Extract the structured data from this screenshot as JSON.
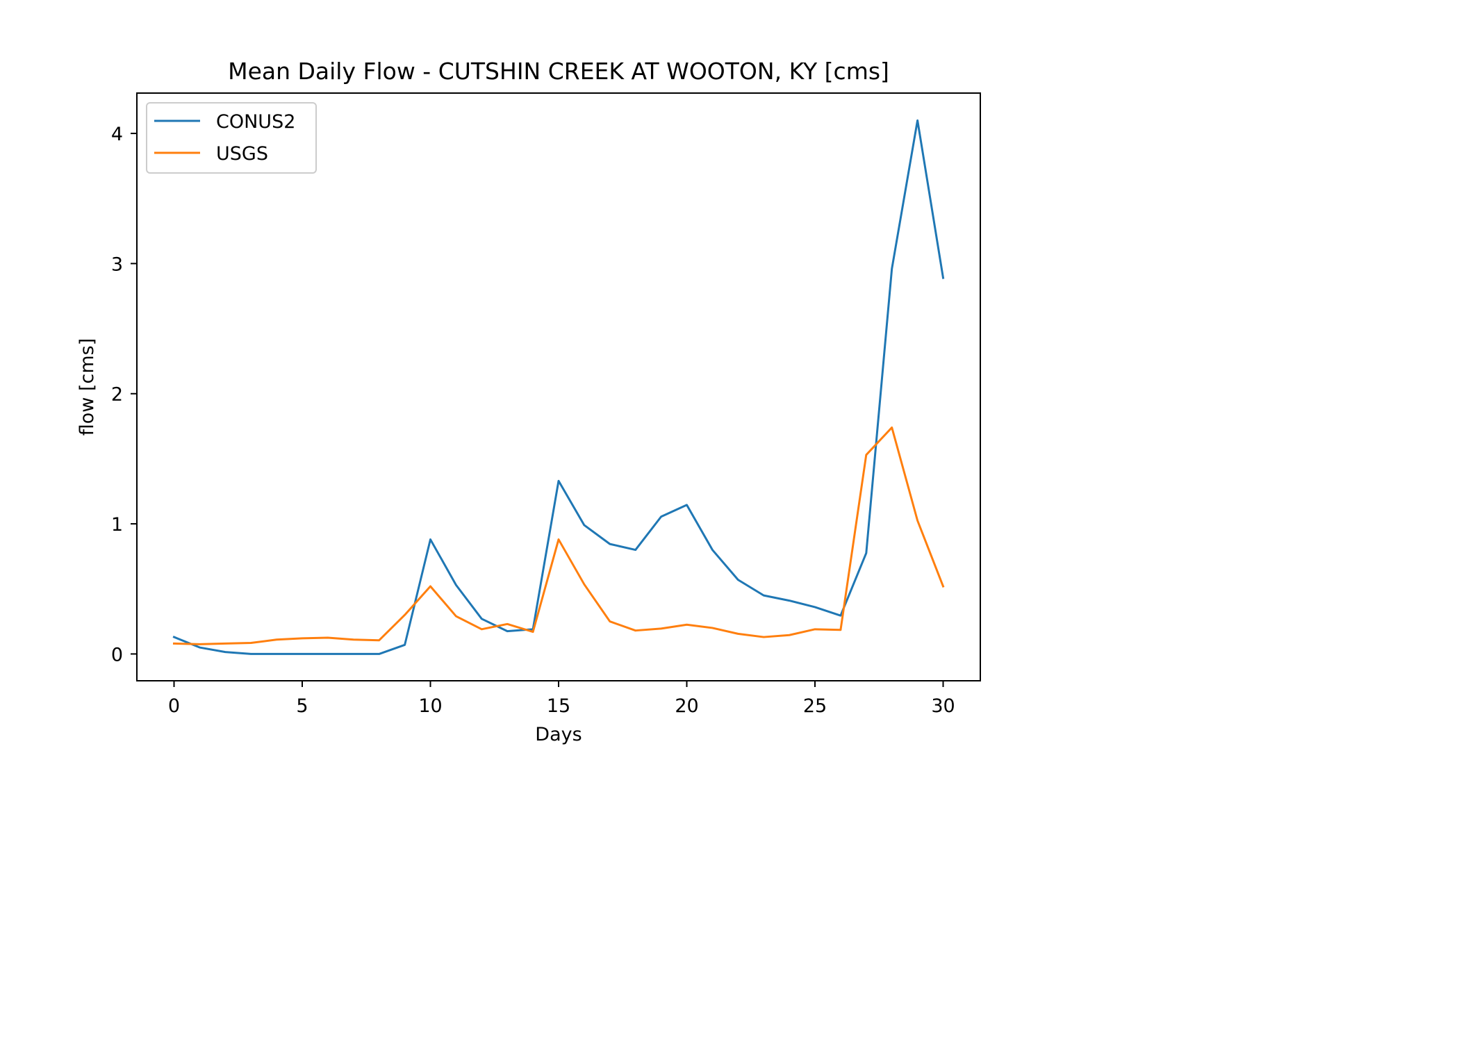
{
  "chart_data": {
    "type": "line",
    "title": "Mean Daily Flow - CUTSHIN CREEK AT WOOTON, KY [cms]",
    "xlabel": "Days",
    "ylabel": "flow [cms]",
    "xlim": [
      -1.45,
      31.45
    ],
    "ylim": [
      -0.206,
      4.31
    ],
    "xticks": [
      0,
      5,
      10,
      15,
      20,
      25,
      30
    ],
    "yticks": [
      0,
      1,
      2,
      3,
      4
    ],
    "grid": false,
    "legend_position": "upper left",
    "x": [
      0,
      1,
      2,
      3,
      4,
      5,
      6,
      7,
      8,
      9,
      10,
      11,
      12,
      13,
      14,
      15,
      16,
      17,
      18,
      19,
      20,
      21,
      22,
      23,
      24,
      25,
      26,
      27,
      28,
      29,
      30
    ],
    "series": [
      {
        "name": "CONUS2",
        "color": "#1f77b4",
        "values": [
          0.13,
          0.05,
          0.015,
          0.0,
          0.0,
          0.0,
          0.0,
          0.0,
          0.0,
          0.07,
          0.88,
          0.53,
          0.27,
          0.175,
          0.19,
          1.33,
          0.99,
          0.845,
          0.8,
          1.055,
          1.145,
          0.8,
          0.57,
          0.45,
          0.41,
          0.36,
          0.295,
          0.775,
          2.96,
          4.1,
          2.89
        ]
      },
      {
        "name": "USGS",
        "color": "#ff7f0e",
        "values": [
          0.08,
          0.075,
          0.08,
          0.085,
          0.11,
          0.12,
          0.125,
          0.11,
          0.105,
          0.3,
          0.52,
          0.29,
          0.19,
          0.23,
          0.17,
          0.88,
          0.535,
          0.25,
          0.18,
          0.195,
          0.225,
          0.2,
          0.155,
          0.13,
          0.145,
          0.19,
          0.185,
          1.53,
          1.74,
          1.025,
          0.52
        ]
      }
    ]
  }
}
